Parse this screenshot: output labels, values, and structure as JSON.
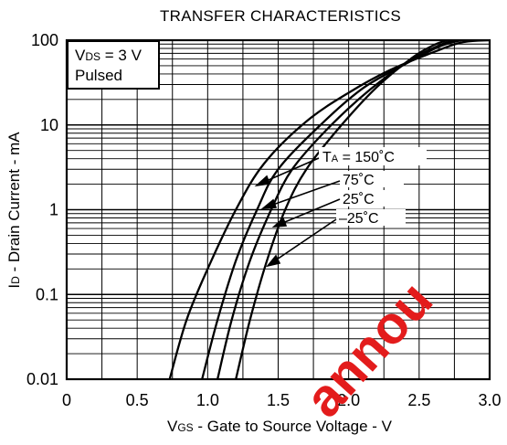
{
  "chart_data": {
    "type": "line",
    "title": "TRANSFER CHARACTERISTICS",
    "xlabel_main": "V",
    "xlabel_sub": "GS",
    "xlabel_rest": " - Gate to Source Voltage - V",
    "ylabel_main": "I",
    "ylabel_sub": "D",
    "ylabel_rest": " - Drain Current - mA",
    "xlim": [
      0,
      3.0
    ],
    "ylim": [
      0.01,
      100
    ],
    "yscale": "log",
    "grid": true,
    "x_ticks": [
      "0",
      "0.5",
      "1.0",
      "1.5",
      "2.0",
      "2.5",
      "3.0"
    ],
    "y_ticks": [
      "0.01",
      "0.1",
      "1",
      "10",
      "100"
    ],
    "condition_line1_main": "V",
    "condition_line1_sub": "DS",
    "condition_line1_rest": " = 3 V",
    "condition_line2": "Pulsed",
    "curve_label_main": "T",
    "curve_label_sub": "A",
    "series": [
      {
        "name": " = 150˚C",
        "color": "#000000",
        "points": [
          [
            0.73,
            0.01
          ],
          [
            0.85,
            0.05
          ],
          [
            1.0,
            0.2
          ],
          [
            1.2,
            1.0
          ],
          [
            1.4,
            3.5
          ],
          [
            1.7,
            11
          ],
          [
            2.0,
            24
          ],
          [
            2.3,
            45
          ],
          [
            2.6,
            72
          ],
          [
            2.8,
            94
          ],
          [
            3.0,
            100
          ]
        ]
      },
      {
        "name": "75˚C",
        "color": "#000000",
        "points": [
          [
            0.96,
            0.01
          ],
          [
            1.07,
            0.05
          ],
          [
            1.2,
            0.25
          ],
          [
            1.35,
            1.0
          ],
          [
            1.5,
            3.0
          ],
          [
            1.8,
            10
          ],
          [
            2.1,
            27
          ],
          [
            2.4,
            52
          ],
          [
            2.65,
            85
          ],
          [
            2.8,
            100
          ]
        ]
      },
      {
        "name": "25˚C",
        "color": "#000000",
        "points": [
          [
            1.07,
            0.01
          ],
          [
            1.17,
            0.05
          ],
          [
            1.3,
            0.25
          ],
          [
            1.45,
            1.0
          ],
          [
            1.6,
            3.0
          ],
          [
            1.85,
            9
          ],
          [
            2.15,
            26
          ],
          [
            2.45,
            60
          ],
          [
            2.65,
            88
          ],
          [
            2.75,
            100
          ]
        ]
      },
      {
        "name": "–25˚C",
        "color": "#000000",
        "points": [
          [
            1.2,
            0.01
          ],
          [
            1.3,
            0.05
          ],
          [
            1.42,
            0.25
          ],
          [
            1.55,
            1.0
          ],
          [
            1.7,
            3.0
          ],
          [
            1.95,
            10
          ],
          [
            2.2,
            28
          ],
          [
            2.45,
            62
          ],
          [
            2.6,
            87
          ],
          [
            2.7,
            100
          ]
        ]
      }
    ]
  },
  "watermark": "annou"
}
